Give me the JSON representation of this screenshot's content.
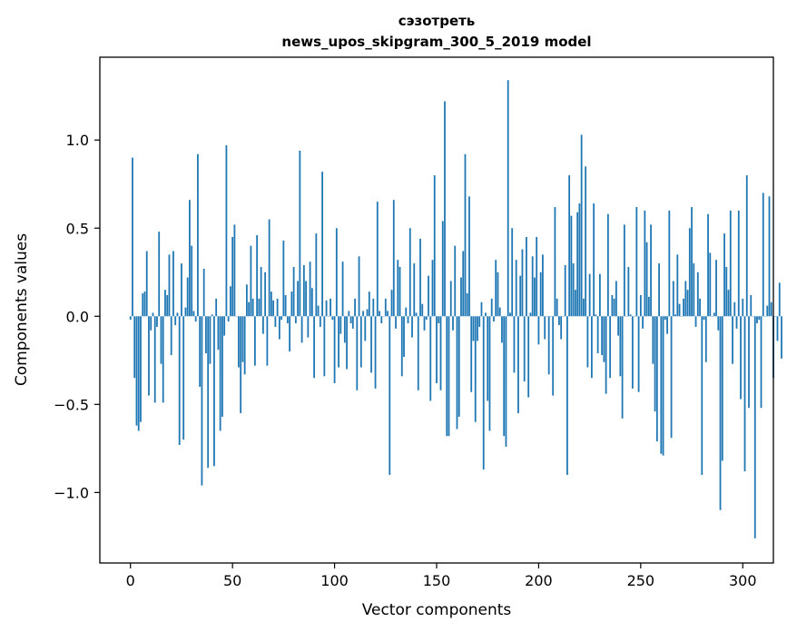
{
  "chart_data": {
    "type": "bar",
    "title_line1": "сэзотреть",
    "title_line2": "news_upos_skipgram_300_5_2019 model",
    "xlabel": "Vector components",
    "ylabel": "Components values",
    "xlim": [
      -15,
      315
    ],
    "ylim": [
      -1.4,
      1.47
    ],
    "xticks": [
      0,
      50,
      100,
      150,
      200,
      250,
      300
    ],
    "yticks": [
      -1.0,
      -0.5,
      0.0,
      0.5,
      1.0
    ],
    "ytick_labels": [
      "−1.0",
      "−0.5",
      "0.0",
      "0.5",
      "1.0"
    ],
    "bar_color": "#1f77b4",
    "grid": false,
    "values": [
      -0.02,
      0.9,
      -0.35,
      -0.62,
      -0.65,
      -0.6,
      0.13,
      0.14,
      0.37,
      -0.45,
      -0.08,
      0.02,
      -0.49,
      -0.06,
      0.48,
      -0.27,
      -0.49,
      0.15,
      0.12,
      0.35,
      -0.22,
      0.37,
      -0.05,
      0.02,
      -0.73,
      0.3,
      -0.7,
      0.05,
      0.22,
      0.66,
      0.4,
      0.03,
      -0.03,
      0.92,
      -0.4,
      -0.96,
      0.27,
      -0.21,
      -0.86,
      -0.27,
      0.01,
      -0.85,
      0.1,
      -0.19,
      -0.65,
      -0.57,
      -0.11,
      0.97,
      -0.03,
      0.17,
      0.45,
      0.52,
      0.0,
      -0.29,
      -0.55,
      -0.26,
      -0.33,
      0.18,
      0.08,
      0.4,
      0.1,
      -0.28,
      0.46,
      0.1,
      0.28,
      -0.1,
      0.25,
      -0.28,
      0.55,
      0.14,
      0.09,
      -0.06,
      0.1,
      -0.13,
      -0.02,
      0.43,
      0.12,
      -0.04,
      -0.2,
      0.14,
      0.28,
      -0.04,
      0.2,
      0.94,
      -0.15,
      0.29,
      0.2,
      -0.12,
      0.31,
      0.16,
      -0.35,
      0.47,
      0.06,
      -0.06,
      0.82,
      -0.34,
      0.09,
      0.0,
      0.1,
      -0.02,
      -0.38,
      0.5,
      -0.29,
      -0.1,
      0.31,
      -0.15,
      -0.3,
      0.03,
      -0.04,
      -0.07,
      0.1,
      -0.42,
      0.34,
      -0.29,
      0.03,
      -0.14,
      0.04,
      0.14,
      -0.32,
      0.1,
      -0.41,
      0.65,
      0.03,
      -0.04,
      0.0,
      0.1,
      0.03,
      -0.9,
      0.15,
      0.66,
      -0.07,
      0.32,
      0.28,
      -0.34,
      -0.23,
      0.05,
      -0.04,
      0.5,
      -0.12,
      0.3,
      0.02,
      -0.42,
      0.44,
      0.07,
      -0.08,
      -0.02,
      0.23,
      -0.48,
      0.32,
      0.8,
      -0.38,
      -0.04,
      -0.42,
      0.54,
      1.22,
      -0.68,
      -0.68,
      0.2,
      -0.08,
      0.4,
      -0.64,
      -0.57,
      0.22,
      0.37,
      0.92,
      0.13,
      0.68,
      -0.43,
      -0.14,
      -0.6,
      -0.14,
      -0.06,
      0.08,
      -0.87,
      0.02,
      -0.48,
      -0.65,
      0.1,
      -0.03,
      0.32,
      0.25,
      0.05,
      -0.15,
      -0.68,
      -0.74,
      1.34,
      0.02,
      0.5,
      -0.32,
      0.32,
      -0.55,
      0.23,
      0.38,
      -0.37,
      0.45,
      -0.46,
      0.02,
      0.34,
      0.22,
      0.45,
      -0.16,
      0.25,
      0.35,
      -0.13,
      0.0,
      -0.33,
      0.0,
      -0.45,
      0.62,
      0.1,
      -0.05,
      -0.13,
      0.0,
      0.29,
      -0.9,
      0.8,
      0.57,
      0.3,
      0.15,
      0.59,
      0.64,
      1.03,
      0.1,
      0.85,
      -0.29,
      0.24,
      -0.35,
      0.64,
      0.01,
      -0.21,
      0.24,
      -0.22,
      -0.26,
      -0.44,
      0.58,
      -0.35,
      0.12,
      0.1,
      0.2,
      -0.11,
      -0.34,
      -0.58,
      0.52,
      0.0,
      0.28,
      0.01,
      -0.41,
      0.0,
      0.62,
      -0.43,
      0.12,
      -0.07,
      0.6,
      0.42,
      0.11,
      0.52,
      -0.27,
      -0.54,
      -0.71,
      0.3,
      -0.78,
      -0.79,
      -0.02,
      -0.1,
      0.6,
      -0.69,
      0.2,
      0.01,
      0.35,
      0.07,
      0.0,
      0.1,
      0.2,
      0.15,
      0.5,
      0.62,
      0.3,
      -0.06,
      0.25,
      0.1,
      -0.9,
      -0.02,
      -0.26,
      0.58,
      0.36,
      0.0,
      0.02,
      0.32,
      -0.08,
      -1.1,
      -0.82,
      0.47,
      0.28,
      0.15,
      0.6,
      -0.27,
      0.08,
      -0.07,
      0.6,
      -0.47,
      0.1,
      -0.88,
      0.8,
      -0.52,
      0.12,
      0.0,
      -1.26,
      -0.04,
      -0.02,
      -0.52,
      0.7,
      0.0,
      0.06,
      0.68,
      0.08,
      -0.35,
      0.0,
      -0.14,
      0.19,
      -0.24
    ]
  }
}
